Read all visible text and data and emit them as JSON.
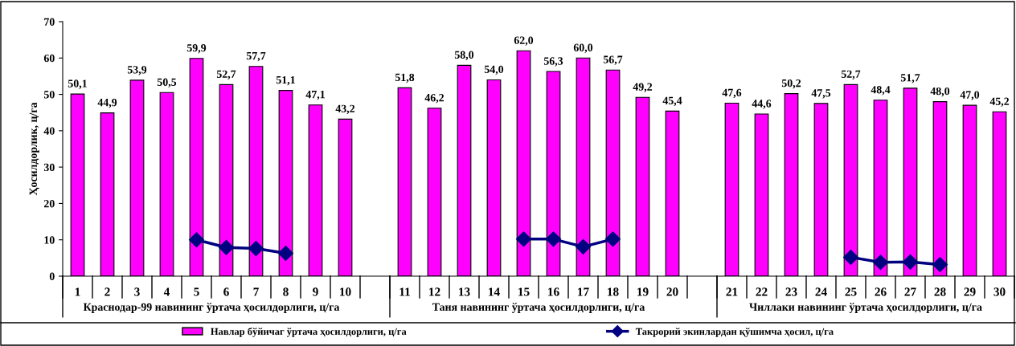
{
  "chart_data": {
    "type": "bar",
    "ylabel": "Ҳосилдорлик, ц/га",
    "categories": [
      "1",
      "2",
      "3",
      "4",
      "5",
      "6",
      "7",
      "8",
      "9",
      "10",
      null,
      "11",
      "12",
      "13",
      "14",
      "15",
      "16",
      "17",
      "18",
      "19",
      "20",
      null,
      "21",
      "22",
      "23",
      "24",
      "25",
      "26",
      "27",
      "28",
      "29",
      "30"
    ],
    "series": [
      {
        "name": "Навлар бўйичаг ўртача ҳосилдорлиги, ц/га",
        "color": "#ff00ff",
        "values": [
          50.1,
          44.9,
          53.9,
          50.5,
          59.9,
          52.7,
          57.7,
          51.1,
          47.1,
          43.2,
          null,
          51.8,
          46.2,
          58.0,
          54.0,
          62.0,
          56.3,
          60.0,
          56.7,
          49.2,
          45.4,
          null,
          47.6,
          44.6,
          50.2,
          47.5,
          52.7,
          48.4,
          51.7,
          48.0,
          47.0,
          45.2
        ],
        "value_labels": [
          "50,1",
          "44,9",
          "53,9",
          "50,5",
          "59,9",
          "52,7",
          "57,7",
          "51,1",
          "47,1",
          "43,2",
          null,
          "51,8",
          "46,2",
          "58,0",
          "54,0",
          "62,0",
          "56,3",
          "60,0",
          "56,7",
          "49,2",
          "45,4",
          null,
          "47,6",
          "44,6",
          "50,2",
          "47,5",
          "52,7",
          "48,4",
          "51,7",
          "48,0",
          "47,0",
          "45,2"
        ]
      },
      {
        "name": "Такрорий экинлардан қўшимча ҳосил, ц/га",
        "type": "line",
        "color": "#000080",
        "marker": "diamond",
        "values": [
          null,
          null,
          null,
          null,
          10.0,
          7.9,
          7.6,
          6.3,
          null,
          null,
          null,
          null,
          null,
          null,
          null,
          10.2,
          10.2,
          8.1,
          10.2,
          null,
          null,
          null,
          null,
          null,
          null,
          null,
          5.2,
          3.8,
          3.9,
          3.2,
          null,
          null
        ]
      }
    ],
    "annotations": [
      "Краснодар-99 навининг ўртача ҳосилдорлиги, ц/га",
      "Таня навининг ўртача ҳосилдорлиги, ц/га",
      "Чиллаки навининг ўртача ҳосилдорлиги, ц/га"
    ],
    "ylim": [
      0,
      70
    ],
    "yticks": [
      0,
      10,
      20,
      30,
      40,
      50,
      60,
      70
    ],
    "grid": false,
    "legend": "bottom"
  }
}
